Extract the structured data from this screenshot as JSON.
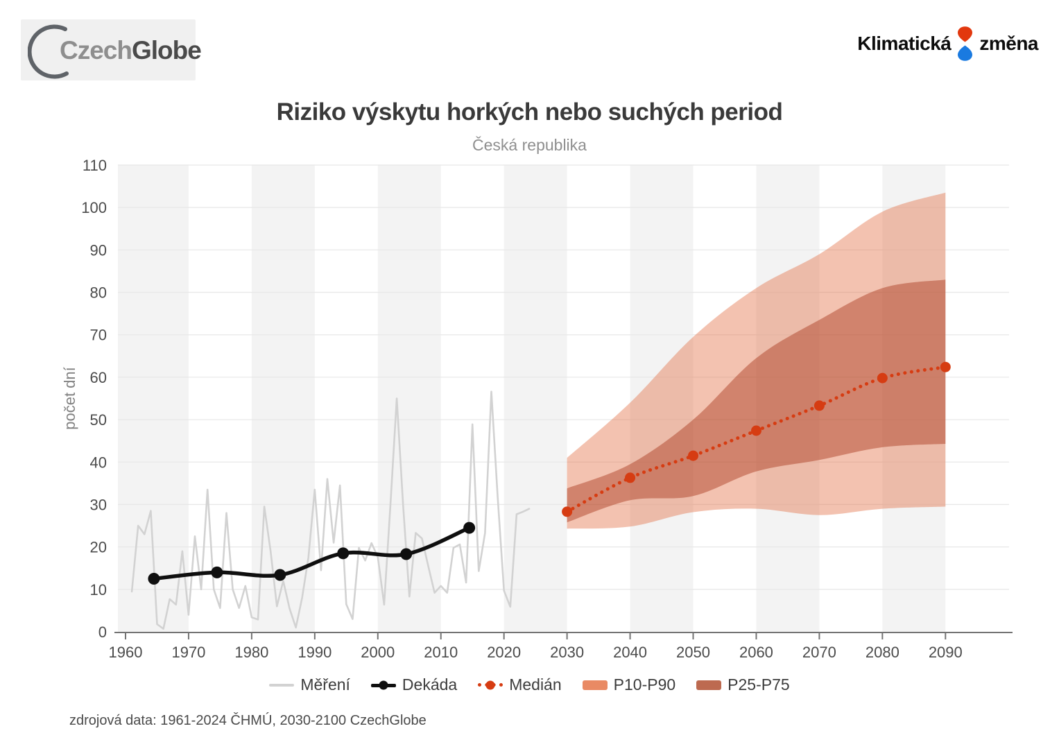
{
  "header": {
    "czechglobe_logo": {
      "part1": "Czech",
      "part2": "Globe"
    },
    "klimaticka_logo": {
      "word1": "Klimatická",
      "word2": "změna"
    }
  },
  "chart_data": {
    "type": "line",
    "title": "Riziko výskytu horkých nebo suchých period",
    "subtitle": "Česká republika",
    "ylabel": "počet dní",
    "xlabel": "",
    "ylim": [
      0,
      110
    ],
    "xlim": [
      1958.8,
      2100
    ],
    "y_ticks": [
      0,
      10,
      20,
      30,
      40,
      50,
      60,
      70,
      80,
      90,
      100,
      110
    ],
    "x_ticks": [
      1960,
      1970,
      1980,
      1990,
      2000,
      2010,
      2020,
      2030,
      2040,
      2050,
      2060,
      2070,
      2080,
      2090
    ],
    "grid": "horizontal",
    "background_stripes": {
      "gray_decades_start": [
        1960,
        1980,
        2000,
        2020,
        2040,
        2060,
        2080
      ]
    },
    "legend_position": "bottom",
    "series": {
      "mereni": {
        "name": "Měření",
        "x_start": 1961,
        "x_step": 1,
        "values": [
          9.5,
          25,
          23,
          28.5,
          1.8,
          0.7,
          7.7,
          6.4,
          19,
          4,
          22.5,
          10,
          33.5,
          10,
          5.6,
          28,
          10,
          5.6,
          10.8,
          3.4,
          2.9,
          29.5,
          19,
          6,
          12,
          5.5,
          1,
          8,
          17.5,
          33.5,
          14.5,
          36,
          21,
          34.5,
          6.5,
          3,
          19.8,
          16.8,
          20.9,
          17.6,
          6.4,
          30,
          55,
          30,
          8.3,
          23.3,
          22,
          15.5,
          9.2,
          10.8,
          9.2,
          19.8,
          20.6,
          11.6,
          48.9,
          14.3,
          23.3,
          56.6,
          31.8,
          9.7,
          5.9,
          27.7,
          28.3,
          29
        ]
      },
      "dekada": {
        "name": "Dekáda",
        "x": [
          1964.5,
          1974.5,
          1984.5,
          1994.5,
          2004.5,
          2014.5
        ],
        "values": [
          12.5,
          14,
          13.4,
          18.5,
          18.3,
          24.5
        ]
      },
      "median": {
        "name": "Medián",
        "x": [
          2030,
          2040,
          2050,
          2060,
          2070,
          2080,
          2090
        ],
        "values": [
          28.3,
          36.3,
          41.5,
          47.4,
          53.3,
          59.8,
          62.4
        ]
      },
      "p10p90": {
        "name": "P10-P90",
        "x": [
          2030,
          2040,
          2050,
          2060,
          2070,
          2080,
          2090
        ],
        "upper": [
          41,
          54,
          69.5,
          81,
          89,
          99,
          103.5
        ],
        "lower": [
          24.3,
          24.8,
          28.2,
          29,
          27.5,
          29,
          29.5
        ]
      },
      "p25p75": {
        "name": "P25-P75",
        "x": [
          2030,
          2040,
          2050,
          2060,
          2070,
          2080,
          2090
        ],
        "upper": [
          33.8,
          39.5,
          50,
          64.5,
          73.5,
          81,
          83
        ],
        "lower": [
          25.8,
          31,
          32,
          37.8,
          40.5,
          43.5,
          44.3
        ]
      }
    },
    "colors": {
      "measurement_line": "#d2d2d2",
      "decade_line": "#0f0f0f",
      "median_line": "#d63c12",
      "band_light": "rgba(226,110,66,0.42)",
      "band_dark": "rgba(163,46,16,0.42)",
      "stripe": "#f3f3f3",
      "gridline": "#e8e8e8",
      "axis": "#737373",
      "tick_label": "#4b4b4b",
      "logo_red": "#e2380e",
      "logo_blue": "#1a7ae0"
    }
  },
  "legend": {
    "items": [
      {
        "label": "Měření",
        "swatch": "gray-line"
      },
      {
        "label": "Dekáda",
        "swatch": "black-line-dot"
      },
      {
        "label": "Medián",
        "swatch": "red-dotted-dot"
      },
      {
        "label": "P10-P90",
        "swatch": "light-rect"
      },
      {
        "label": "P25-P75",
        "swatch": "dark-rect"
      }
    ]
  },
  "footer": {
    "source": "zdrojová data: 1961-2024 ČHMÚ, 2030-2100 CzechGlobe"
  }
}
